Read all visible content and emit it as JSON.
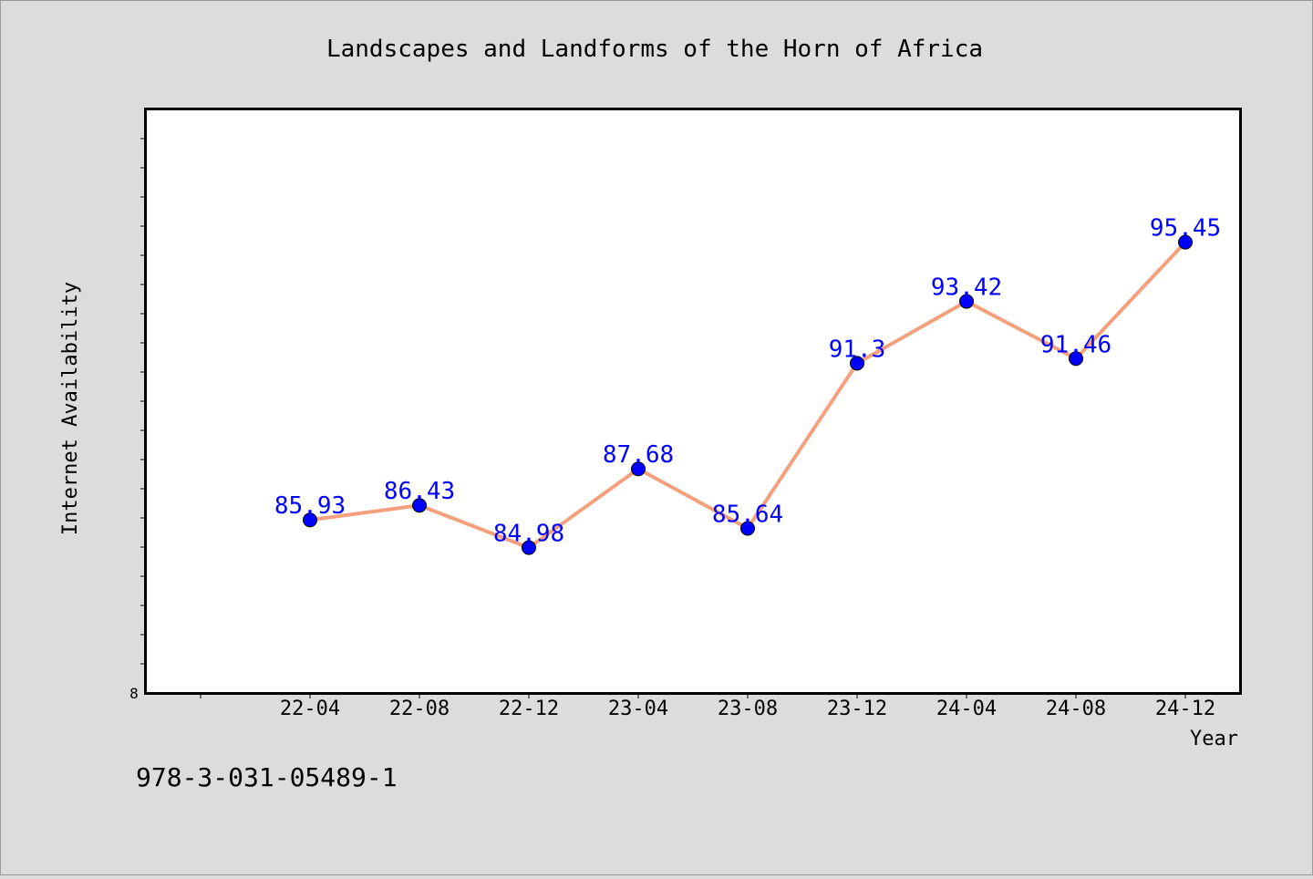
{
  "footer_text": "978-3-031-05489-1",
  "chart_data": {
    "type": "line",
    "title": "Landscapes and Landforms of the Horn of Africa",
    "xlabel": "Year",
    "ylabel": "Internet Availability",
    "categories": [
      "22-04",
      "22-08",
      "22-12",
      "23-04",
      "23-08",
      "23-12",
      "24-04",
      "24-08",
      "24-12"
    ],
    "series": [
      {
        "values": [
          85.93,
          86.43,
          84.98,
          87.68,
          85.64,
          91.3,
          93.42,
          91.46,
          95.45
        ],
        "data_labels": [
          "85.93",
          "86.43",
          "84.98",
          "87.68",
          "85.64",
          "91.3",
          "93.42",
          "91.46",
          "95.45"
        ]
      }
    ],
    "ylim": [
      80,
      100
    ],
    "y_tick_labels": [
      "8"
    ],
    "grid": false,
    "legend": "none",
    "colors": {
      "line": "#f4a07c",
      "marker": "#0000ff",
      "data_label": "#0000ff",
      "plot_background": "#ffffff",
      "page_background": "#dcdcdc"
    }
  }
}
